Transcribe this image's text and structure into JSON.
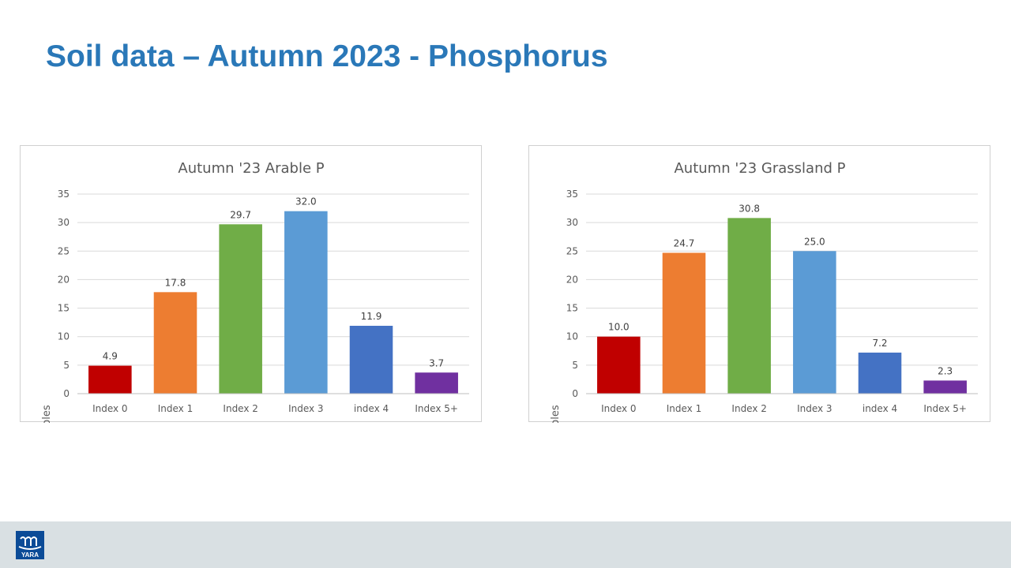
{
  "slide": {
    "title": "Soil data – Autumn 2023 - Phosphorus"
  },
  "logo": {
    "text": "YARA",
    "icon": "viking-ship-icon"
  },
  "colors": {
    "title": "#2a78b8",
    "footer": "#d9e0e3",
    "bars": [
      "#c00000",
      "#ed7d31",
      "#70ad47",
      "#5b9bd5",
      "#4472c4",
      "#7030a0"
    ]
  },
  "chart_data": [
    {
      "type": "bar",
      "title": "Autumn '23 Arable P",
      "ylabel": "% of samples",
      "xlabel": "",
      "categories": [
        "Index 0",
        "Index 1",
        "Index 2",
        "Index 3",
        "index 4",
        "Index 5+"
      ],
      "values": [
        4.9,
        17.8,
        29.7,
        32.0,
        11.9,
        3.7
      ],
      "value_labels": [
        "4.9",
        "17.8",
        "29.7",
        "32.0",
        "11.9",
        "3.7"
      ],
      "ylim": [
        0,
        35
      ],
      "yticks": [
        0,
        5,
        10,
        15,
        20,
        25,
        30,
        35
      ],
      "grid": true,
      "legend": "none"
    },
    {
      "type": "bar",
      "title": "Autumn '23 Grassland P",
      "ylabel": "% of samples",
      "xlabel": "",
      "categories": [
        "Index 0",
        "Index 1",
        "Index 2",
        "Index 3",
        "index 4",
        "Index 5+"
      ],
      "values": [
        10.0,
        24.7,
        30.8,
        25.0,
        7.2,
        2.3
      ],
      "value_labels": [
        "10.0",
        "24.7",
        "30.8",
        "25.0",
        "7.2",
        "2.3"
      ],
      "ylim": [
        0,
        35
      ],
      "yticks": [
        0,
        5,
        10,
        15,
        20,
        25,
        30,
        35
      ],
      "grid": true,
      "legend": "none"
    }
  ]
}
